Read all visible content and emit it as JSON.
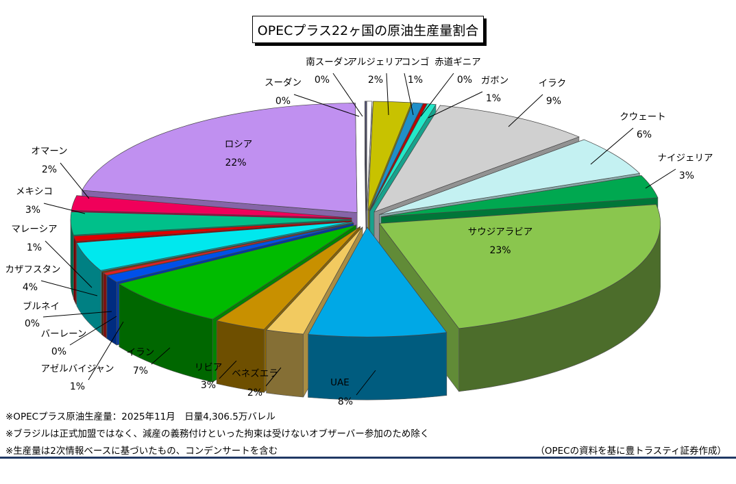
{
  "chart_data": {
    "type": "pie",
    "title": "OPECプラス22ヶ国の原油生産量割合",
    "slices": [
      {
        "name": "南スーダン",
        "label": "0%",
        "value": 0.3,
        "color": "#ffffff"
      },
      {
        "name": "アルジェリア",
        "label": "2%",
        "value": 2.2,
        "color": "#c8c200"
      },
      {
        "name": "コンゴ",
        "label": "1%",
        "value": 0.6,
        "color": "#1f8fc8"
      },
      {
        "name": "赤道ギニア",
        "label": "0%",
        "value": 0.2,
        "color": "#c00000"
      },
      {
        "name": "ガボン",
        "label": "1%",
        "value": 0.5,
        "color": "#22e8c8"
      },
      {
        "name": "イラク",
        "label": "9%",
        "value": 9.3,
        "color": "#d0d0d0"
      },
      {
        "name": "クウェート",
        "label": "6%",
        "value": 5.9,
        "color": "#c4f1f2"
      },
      {
        "name": "ナイジェリア",
        "label": "3%",
        "value": 3.4,
        "color": "#00a850"
      },
      {
        "name": "サウジアラビア",
        "label": "23%",
        "value": 23.4,
        "color": "#8ac64e"
      },
      {
        "name": "UAE",
        "label": "8%",
        "value": 8.0,
        "color": "#00a8e6"
      },
      {
        "name": "ベネズエラ",
        "label": "2%",
        "value": 2.2,
        "color": "#f2ca60"
      },
      {
        "name": "リビア",
        "label": "3%",
        "value": 3.0,
        "color": "#c89000"
      },
      {
        "name": "イラン",
        "label": "7%",
        "value": 7.5,
        "color": "#00bb00"
      },
      {
        "name": "アゼルバイジャン",
        "label": "1%",
        "value": 1.1,
        "color": "#0050e8"
      },
      {
        "name": "バーレーン",
        "label": "0%",
        "value": 0.4,
        "color": "#e02020"
      },
      {
        "name": "ブルネイ",
        "label": "0%",
        "value": 0.2,
        "color": "#7a3a00"
      },
      {
        "name": "カザフスタン",
        "label": "4%",
        "value": 4.3,
        "color": "#00e8ee"
      },
      {
        "name": "マレーシア",
        "label": "1%",
        "value": 0.8,
        "color": "#dd0000"
      },
      {
        "name": "メキシコ",
        "label": "3%",
        "value": 3.4,
        "color": "#00c08a"
      },
      {
        "name": "オマーン",
        "label": "2%",
        "value": 2.2,
        "color": "#f0005a"
      },
      {
        "name": "ロシア",
        "label": "22%",
        "value": 21.8,
        "color": "#c090f0"
      },
      {
        "name": "スーダン",
        "label": "0%",
        "value": 0.1,
        "color": "#5a5a80"
      }
    ]
  },
  "notes": [
    "※OPECプラス原油生産量：2025年11月　日量4,306.5万バレル",
    "※ブラジルは正式加盟ではなく、減産の義務付けといった拘束は受けないオブザーバー参加のため除く",
    "※生産量は2次情報ベースに基づいたもの、コンデンサートを含む"
  ],
  "source": "（OPECの資料を基に豊トラスティ証券作成）"
}
